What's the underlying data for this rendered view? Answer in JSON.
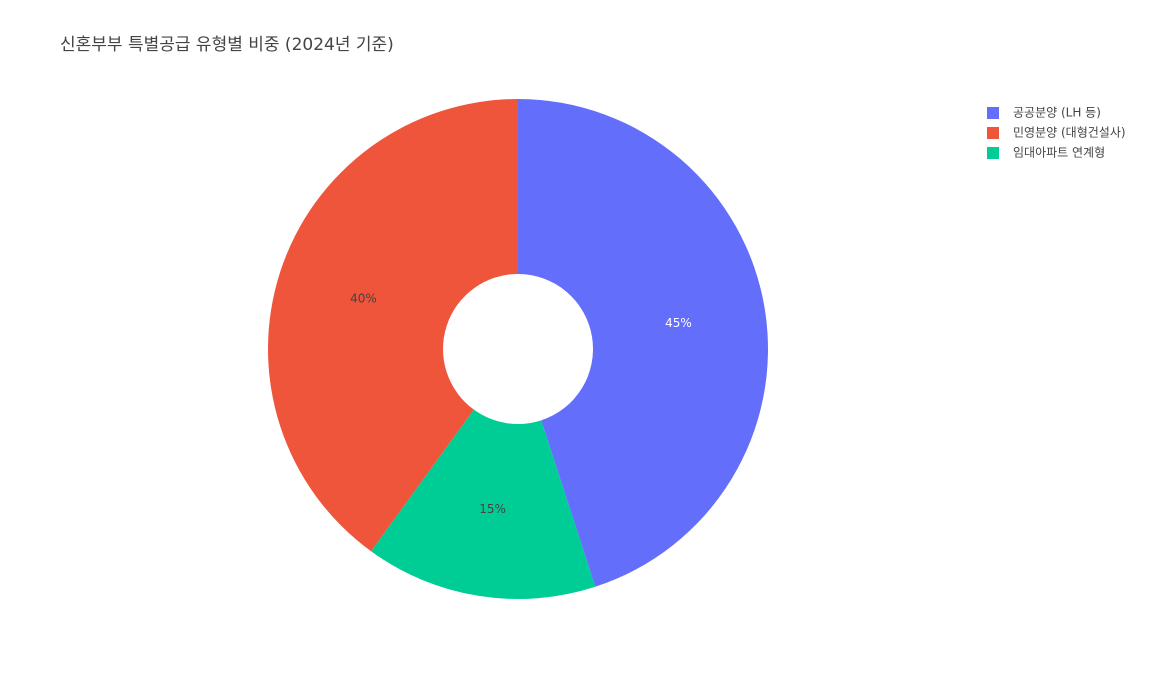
{
  "chart_data": {
    "type": "pie",
    "title": "신혼부부 특별공급 유형별 비중 (2024년 기준)",
    "categories": [
      "공공분양 (LH 등)",
      "민영분양 (대형건설사)",
      "임대아파트 연계형"
    ],
    "values": [
      45,
      40,
      15
    ],
    "value_labels": [
      "45%",
      "40%",
      "15%"
    ],
    "colors": [
      "#636efa",
      "#EF553B",
      "#00cc96"
    ],
    "hole": 0.3,
    "direction": "counterclockwise",
    "legend": "top-right"
  }
}
